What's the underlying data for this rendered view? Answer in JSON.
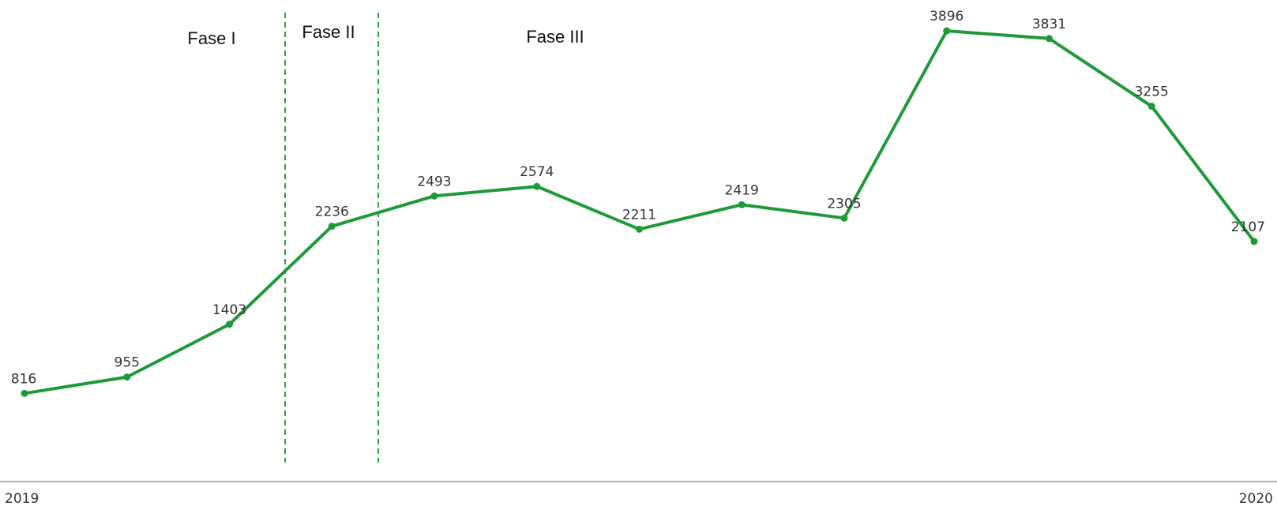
{
  "chart_data": {
    "type": "line",
    "title": "",
    "xlabel": "",
    "ylabel": "",
    "x_ticks": [
      "2019",
      "2020"
    ],
    "values": [
      816,
      955,
      1403,
      2236,
      2493,
      2574,
      2211,
      2419,
      2305,
      3896,
      3831,
      3255,
      2107
    ],
    "ylim": [
      0,
      4200
    ],
    "grid": false,
    "phases": [
      {
        "label": "Fase I"
      },
      {
        "label": "Fase II"
      },
      {
        "label": "Fase III"
      }
    ],
    "colors": {
      "line": "#1f9a3a",
      "axis": "#9a9a9a",
      "divider": "#27a845"
    }
  }
}
